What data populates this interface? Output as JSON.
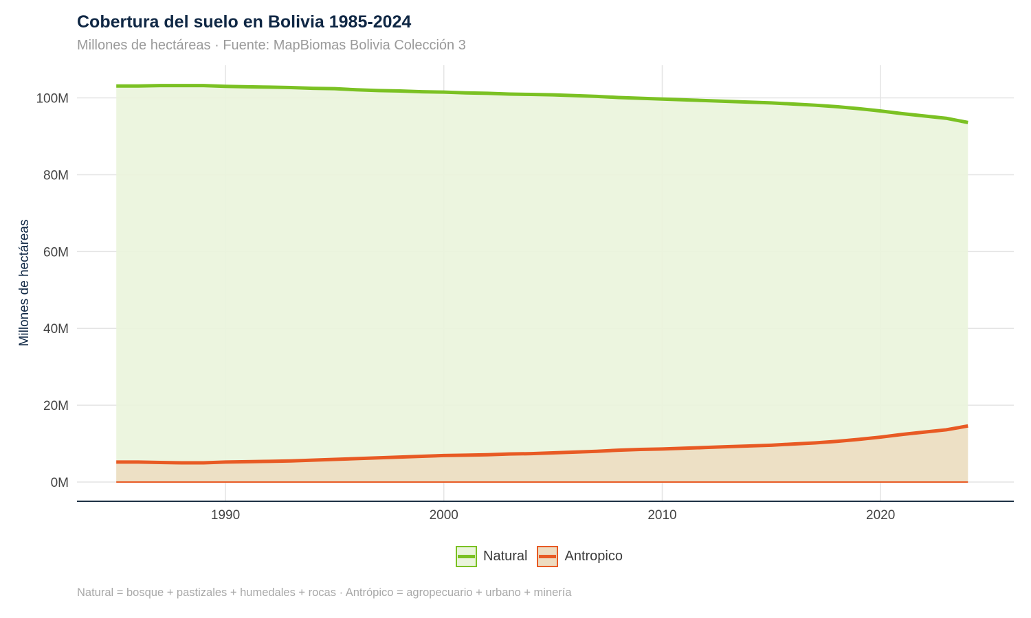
{
  "colors": {
    "natural": "#7bc123",
    "natural_fill": "#eaf4dc",
    "antropico": "#e85a24",
    "antropico_fill": "#eddcc1",
    "title": "#0f2744",
    "axis": "#1d3145",
    "grid": "#e4e4e4"
  },
  "chart_data": {
    "type": "area",
    "title": "Cobertura del suelo en Bolivia 1985-2024",
    "subtitle": "Millones de hectáreas · Fuente: MapBiomas Bolivia Colección 3",
    "ylabel": "Millones de hectáreas",
    "xlabel": "",
    "caption": "Natural = bosque + pastizales + humedales + rocas · Antrópico = agropecuario + urbano + minería",
    "grid": true,
    "legend_position": "bottom",
    "xlim": [
      1983.2,
      2026.1
    ],
    "ylim": [
      -5,
      108.5
    ],
    "x_ticks": [
      1990,
      2000,
      2010,
      2020
    ],
    "y_ticks": [
      {
        "value": 0,
        "label": "0M"
      },
      {
        "value": 20,
        "label": "20M"
      },
      {
        "value": 40,
        "label": "40M"
      },
      {
        "value": 60,
        "label": "60M"
      },
      {
        "value": 80,
        "label": "80M"
      },
      {
        "value": 100,
        "label": "100M"
      }
    ],
    "x": [
      1985,
      1986,
      1987,
      1988,
      1989,
      1990,
      1991,
      1992,
      1993,
      1994,
      1995,
      1996,
      1997,
      1998,
      1999,
      2000,
      2001,
      2002,
      2003,
      2004,
      2005,
      2006,
      2007,
      2008,
      2009,
      2010,
      2011,
      2012,
      2013,
      2014,
      2015,
      2016,
      2017,
      2018,
      2019,
      2020,
      2021,
      2022,
      2023,
      2024
    ],
    "series": [
      {
        "name": "Natural",
        "key": "natural",
        "values": [
          103.1,
          103.1,
          103.2,
          103.2,
          103.2,
          103.0,
          102.9,
          102.8,
          102.7,
          102.5,
          102.4,
          102.1,
          101.9,
          101.8,
          101.6,
          101.5,
          101.3,
          101.2,
          101.0,
          100.9,
          100.8,
          100.6,
          100.4,
          100.1,
          99.9,
          99.7,
          99.5,
          99.3,
          99.1,
          98.9,
          98.7,
          98.4,
          98.1,
          97.7,
          97.2,
          96.6,
          95.9,
          95.3,
          94.7,
          93.6
        ]
      },
      {
        "name": "Antropico",
        "key": "antropico",
        "values": [
          5.2,
          5.2,
          5.1,
          5.0,
          5.0,
          5.2,
          5.3,
          5.4,
          5.5,
          5.7,
          5.9,
          6.1,
          6.3,
          6.5,
          6.7,
          6.9,
          7.0,
          7.1,
          7.3,
          7.4,
          7.6,
          7.8,
          8.0,
          8.3,
          8.5,
          8.6,
          8.8,
          9.0,
          9.2,
          9.4,
          9.6,
          9.9,
          10.2,
          10.6,
          11.1,
          11.7,
          12.4,
          13.0,
          13.6,
          14.6
        ]
      }
    ]
  }
}
